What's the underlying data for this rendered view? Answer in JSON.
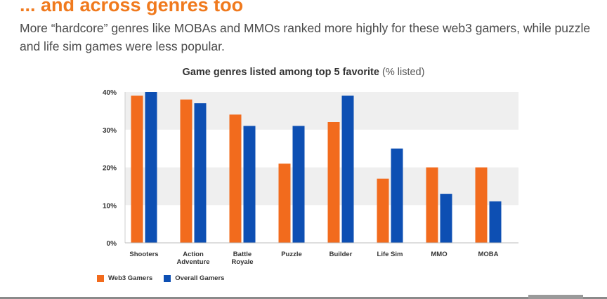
{
  "heading": "... and across genres too",
  "subtitle": "More “hardcore” genres like MOBAs and MMOs ranked more highly for these web3 gamers, while puzzle and life sim games were less popular.",
  "chart_data": {
    "type": "bar",
    "title": "Game genres listed among top 5 favorite",
    "title_unit": "(% listed)",
    "categories": [
      [
        "Shooters"
      ],
      [
        "Action",
        "Adventure"
      ],
      [
        "Battle",
        "Royale"
      ],
      [
        "Puzzle"
      ],
      [
        "Builder"
      ],
      [
        "Life Sim"
      ],
      [
        "MMO"
      ],
      [
        "MOBA"
      ]
    ],
    "series": [
      {
        "name": "Web3 Gamers",
        "color": "#f26b1d",
        "values": [
          39,
          38,
          34,
          21,
          32,
          17,
          20,
          20
        ]
      },
      {
        "name": "Overall Gamers",
        "color": "#0d4fb3",
        "values": [
          40,
          37,
          31,
          31,
          39,
          25,
          13,
          11
        ]
      }
    ],
    "yticks": [
      "0%",
      "10%",
      "20%",
      "30%",
      "40%"
    ],
    "ylim": [
      0,
      40
    ],
    "grid": "alternating horizontal bands",
    "legend_position": "bottom-left"
  }
}
